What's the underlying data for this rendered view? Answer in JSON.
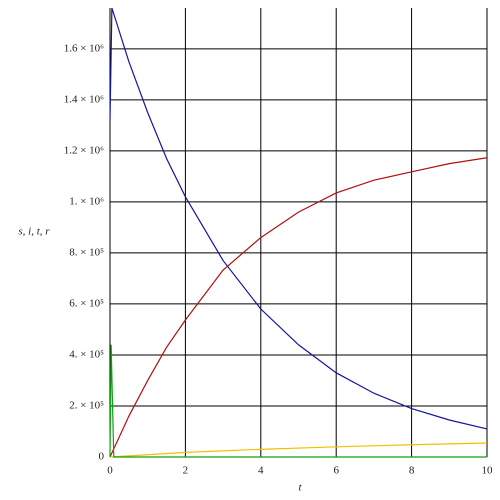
{
  "chart_data": {
    "type": "line",
    "y_label": "s, i, t, r",
    "x_label": "t",
    "xlim": [
      0,
      10
    ],
    "xticks": [
      0,
      2,
      4,
      6,
      8,
      10
    ],
    "ylim": [
      0,
      1760000
    ],
    "yticks": [
      0,
      {
        "value": 200000,
        "label": "2. × 10⁵"
      },
      {
        "value": 400000,
        "label": "4. × 10⁵"
      },
      {
        "value": 600000,
        "label": "6. × 10⁵"
      },
      {
        "value": 800000,
        "label": "8. × 10⁵"
      },
      {
        "value": 1000000,
        "label": "1. × 10⁶"
      },
      {
        "value": 1200000,
        "label": "1.2 × 10⁶"
      },
      {
        "value": 1400000,
        "label": "1.4 × 10⁶"
      },
      {
        "value": 1600000,
        "label": "1.6 × 10⁶"
      }
    ],
    "grid": true,
    "series": [
      {
        "color": "#1414a0",
        "x": [
          0,
          0.05,
          0.5,
          1,
          1.5,
          2,
          3,
          4,
          5,
          6,
          7,
          8,
          9,
          10
        ],
        "values": [
          1320000,
          1760000,
          1550000,
          1350000,
          1170000,
          1020000,
          770000,
          580000,
          440000,
          330000,
          250000,
          190000,
          145000,
          110000
        ]
      },
      {
        "color": "#b01010",
        "x": [
          0,
          0.5,
          1,
          1.5,
          2,
          3,
          4,
          5,
          6,
          7,
          8,
          9,
          10
        ],
        "values": [
          0,
          160000,
          300000,
          430000,
          537000,
          733000,
          860000,
          960000,
          1035000,
          1085000,
          1118000,
          1150000,
          1173000
        ]
      },
      {
        "color": "#f0c000",
        "x": [
          0,
          2,
          4,
          6,
          8,
          10
        ],
        "values": [
          0,
          18000,
          30000,
          40000,
          48000,
          55000
        ]
      },
      {
        "color": "#10a010",
        "x": [
          0,
          0.03,
          0.1,
          10
        ],
        "values": [
          0,
          440000,
          0,
          0
        ]
      }
    ]
  }
}
